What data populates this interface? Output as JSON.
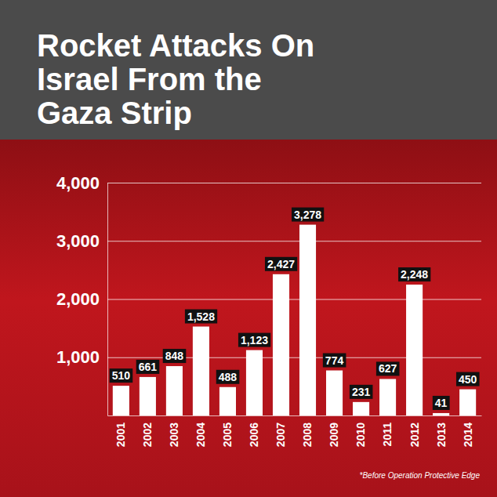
{
  "chart_data": {
    "type": "bar",
    "title": "Rocket Attacks On Israel From the Gaza Strip",
    "annotation": "*Before Operation Protective Edge",
    "categories": [
      "2001",
      "2002",
      "2003",
      "2004",
      "2005",
      "2006",
      "2007",
      "2008",
      "2009",
      "2010",
      "2011",
      "2012",
      "2013",
      "2014"
    ],
    "values": [
      510,
      661,
      848,
      1528,
      488,
      1123,
      2427,
      3278,
      774,
      231,
      627,
      2248,
      41,
      450
    ],
    "value_labels": [
      "510",
      "661",
      "848",
      "1,528",
      "488",
      "1,123",
      "2,427",
      "3,278",
      "774",
      "231",
      "627",
      "2,248",
      "41",
      "450"
    ],
    "color": "#ffffff",
    "ylim": [
      0,
      4000
    ],
    "yticks": [
      {
        "value": 1000,
        "label": "1,000"
      },
      {
        "value": 2000,
        "label": "2,000"
      },
      {
        "value": 3000,
        "label": "3,000"
      },
      {
        "value": 4000,
        "label": "4,000"
      }
    ],
    "grid": true,
    "data_labels": true
  }
}
